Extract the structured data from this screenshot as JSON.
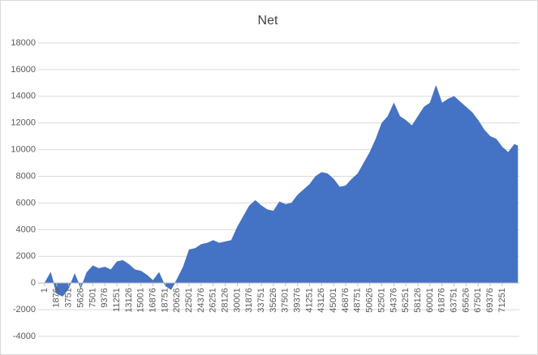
{
  "chart_data": {
    "type": "area",
    "title": "Net",
    "series": [
      {
        "name": "Net",
        "color": "#4472c4",
        "x": [
          1,
          938,
          1876,
          2813,
          3751,
          4688,
          5626,
          6563,
          7501,
          8438,
          9376,
          10313,
          11251,
          12188,
          13126,
          14063,
          15001,
          15938,
          16876,
          17813,
          18751,
          19688,
          20626,
          21563,
          22501,
          23438,
          24376,
          25313,
          26251,
          27188,
          28126,
          29063,
          30001,
          30938,
          31876,
          32813,
          33751,
          34688,
          35626,
          36563,
          37501,
          38438,
          39376,
          40313,
          41251,
          42188,
          43126,
          44063,
          45001,
          45938,
          46876,
          47813,
          48751,
          49688,
          50626,
          51563,
          52501,
          53438,
          54376,
          55313,
          56251,
          57188,
          58126,
          59063,
          60001,
          60938,
          61876,
          62813,
          63751,
          64688,
          65626,
          66563,
          67501,
          68438,
          69376,
          70313,
          71251,
          72188,
          73126,
          73660
        ],
        "values": [
          0,
          800,
          -800,
          -1000,
          -400,
          700,
          -400,
          800,
          1300,
          1100,
          1200,
          1000,
          1600,
          1700,
          1400,
          1000,
          900,
          600,
          200,
          800,
          -200,
          -500,
          300,
          1200,
          2500,
          2600,
          2900,
          3000,
          3200,
          3000,
          3100,
          3200,
          4200,
          5000,
          5800,
          6200,
          5800,
          5500,
          5400,
          6100,
          5900,
          6000,
          6600,
          7000,
          7400,
          8000,
          8300,
          8200,
          7800,
          7200,
          7300,
          7800,
          8200,
          9000,
          9800,
          10800,
          12000,
          12500,
          13500,
          12500,
          12200,
          11800,
          12500,
          13200,
          13500,
          14800,
          13500,
          13800,
          14000,
          13600,
          13200,
          12800,
          12200,
          11500,
          11000,
          10800,
          10200,
          9800,
          10400,
          10300
        ]
      }
    ],
    "xlim": [
      1,
      73660
    ],
    "xticks": [
      1,
      1876,
      3751,
      5626,
      7501,
      9376,
      11251,
      13126,
      15001,
      16876,
      18751,
      20626,
      22501,
      24376,
      26251,
      28126,
      30001,
      31876,
      33751,
      35626,
      37501,
      39376,
      41251,
      43126,
      45001,
      46876,
      48751,
      50626,
      52501,
      54376,
      56251,
      58126,
      60001,
      61876,
      63751,
      65626,
      67501,
      69376,
      71251
    ],
    "ylim": [
      -4000,
      18000
    ],
    "yticks": [
      -4000,
      -2000,
      0,
      2000,
      4000,
      6000,
      8000,
      10000,
      12000,
      14000,
      16000,
      18000
    ],
    "grid": true
  }
}
